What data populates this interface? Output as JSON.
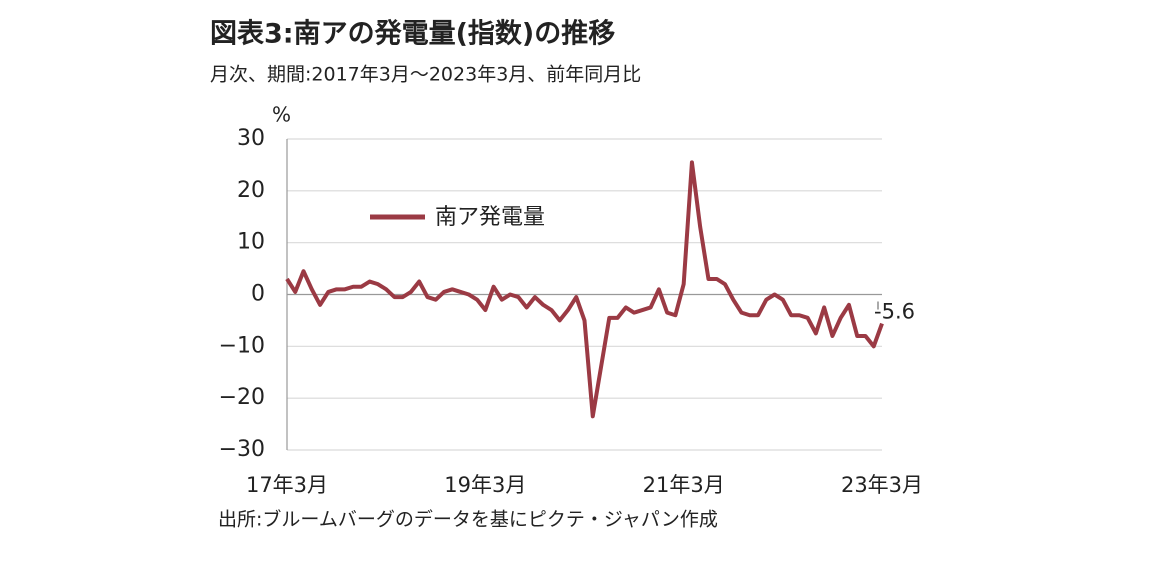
{
  "chart_data": {
    "type": "line",
    "title": "図表3:南アの発電量(指数)の推移",
    "subtitle": "月次、期間:2017年3月～2023年3月、前年同月比",
    "y_label": "%",
    "source": "出所:ブルームバーグのデータを基にピクテ・ジャパン作成",
    "categories": [
      "17年3月",
      null,
      null,
      null,
      null,
      null,
      null,
      null,
      null,
      null,
      null,
      null,
      null,
      null,
      null,
      null,
      null,
      null,
      null,
      null,
      null,
      null,
      null,
      null,
      "19年3月",
      null,
      null,
      null,
      null,
      null,
      null,
      null,
      null,
      null,
      null,
      null,
      null,
      null,
      null,
      null,
      null,
      null,
      null,
      null,
      null,
      null,
      null,
      null,
      "21年3月",
      null,
      null,
      null,
      null,
      null,
      null,
      null,
      null,
      null,
      null,
      null,
      null,
      null,
      null,
      null,
      null,
      null,
      null,
      null,
      null,
      null,
      null,
      null,
      "23年3月"
    ],
    "series": [
      {
        "name": "南ア発電量",
        "color": "#9b3a44",
        "values": [
          3,
          0.5,
          4.5,
          1,
          -2,
          0.5,
          1,
          1,
          1.5,
          1.5,
          2.5,
          2,
          1,
          -0.5,
          -0.5,
          0.5,
          2.5,
          -0.5,
          -1,
          0.5,
          1,
          0.5,
          0,
          -1,
          -3,
          1.5,
          -1,
          0,
          -0.5,
          -2.5,
          -0.5,
          -2,
          -3,
          -5,
          -3,
          -0.5,
          -5,
          -23.5,
          -14,
          -4.5,
          -4.5,
          -2.5,
          -3.5,
          -3,
          -2.5,
          1,
          -3.5,
          -4,
          2,
          25.5,
          13,
          3,
          3,
          2,
          -1,
          -3.5,
          -4,
          -4,
          -1,
          0,
          -1,
          -4,
          -4,
          -4.5,
          -7.5,
          -2.5,
          -8,
          -4.5,
          -2,
          -8,
          -8,
          -10,
          -5.6
        ],
        "end_label": "-5.6"
      }
    ],
    "ylim": [
      -30,
      30
    ],
    "yticks": [
      {
        "value": -30,
        "label": "−30"
      },
      {
        "value": -20,
        "label": "−20"
      },
      {
        "value": -10,
        "label": "−10"
      },
      0,
      10,
      20,
      30
    ],
    "grid": true,
    "legend": "upper left"
  }
}
